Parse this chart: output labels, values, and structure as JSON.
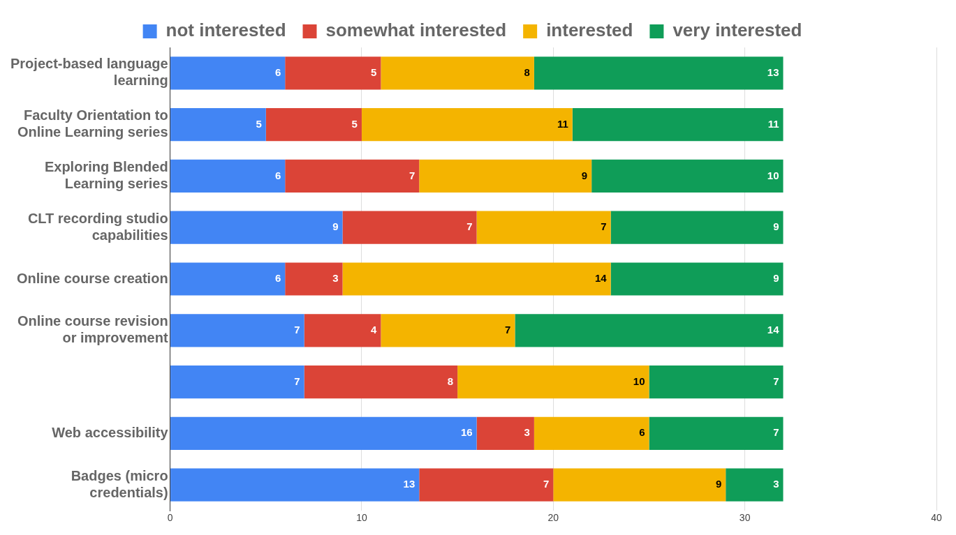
{
  "chart_data": {
    "type": "bar",
    "orientation": "horizontal",
    "stacked": true,
    "categories": [
      "Project-based language learning",
      "Faculty Orientation to Online Learning series",
      "Exploring Blended Learning series",
      "CLT recording studio capabilities",
      "Online course creation",
      "Online course revision or improvement",
      null,
      "Web accessibility",
      "Badges (micro credentials)"
    ],
    "series": [
      {
        "name": "not interested",
        "color": "#4285f4",
        "values": [
          6,
          5,
          6,
          9,
          6,
          7,
          7,
          16,
          13
        ]
      },
      {
        "name": "somewhat interested",
        "color": "#db4437",
        "values": [
          5,
          5,
          7,
          7,
          3,
          4,
          8,
          3,
          7
        ]
      },
      {
        "name": "interested",
        "color": "#f4b400",
        "values": [
          8,
          11,
          9,
          7,
          14,
          7,
          10,
          6,
          9
        ]
      },
      {
        "name": "very interested",
        "color": "#0f9d58",
        "values": [
          13,
          11,
          10,
          9,
          9,
          14,
          7,
          7,
          3
        ]
      }
    ],
    "xlim": [
      0,
      40
    ],
    "xticks": [
      0,
      10,
      20,
      30,
      40
    ],
    "grid": "x",
    "legend": "top",
    "data_labels": true
  }
}
